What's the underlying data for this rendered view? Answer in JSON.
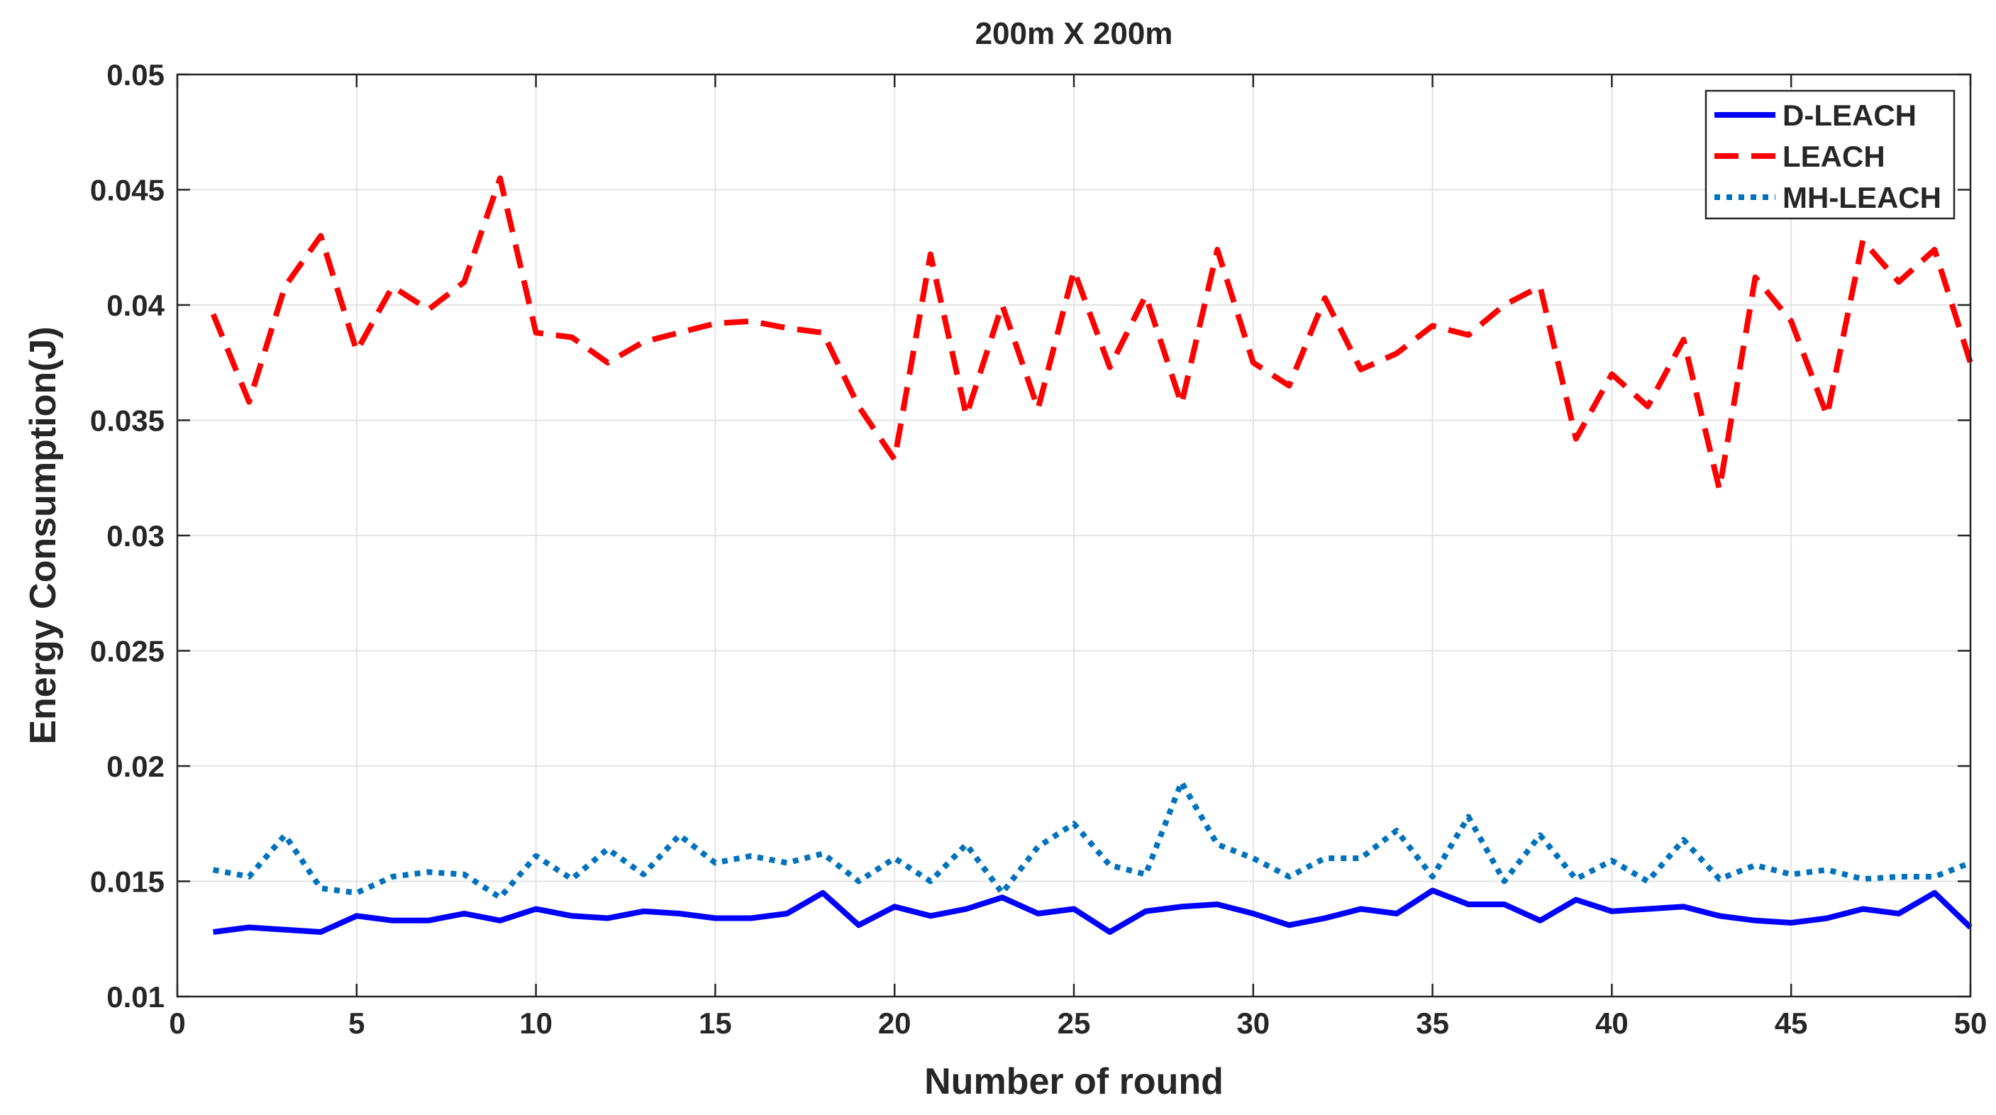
{
  "chart_data": {
    "type": "line",
    "title": "200m X 200m",
    "xlabel": "Number of round",
    "ylabel": "Energy Consumption(J)",
    "xlim": [
      0,
      50
    ],
    "ylim": [
      0.01,
      0.05
    ],
    "xticks": [
      0,
      5,
      10,
      15,
      20,
      25,
      30,
      35,
      40,
      45,
      50
    ],
    "xtick_labels": [
      "0",
      "5",
      "10",
      "15",
      "20",
      "25",
      "30",
      "35",
      "40",
      "45",
      "50"
    ],
    "yticks": [
      0.01,
      0.015,
      0.02,
      0.025,
      0.03,
      0.035,
      0.04,
      0.045,
      0.05
    ],
    "ytick_labels": [
      "0.01",
      "0.015",
      "0.02",
      "0.025",
      "0.03",
      "0.035",
      "0.04",
      "0.045",
      "0.05"
    ],
    "grid": true,
    "legend_position": "top-right",
    "x": [
      1,
      2,
      3,
      4,
      5,
      6,
      7,
      8,
      9,
      10,
      11,
      12,
      13,
      14,
      15,
      16,
      17,
      18,
      19,
      20,
      21,
      22,
      23,
      24,
      25,
      26,
      27,
      28,
      29,
      30,
      31,
      32,
      33,
      34,
      35,
      36,
      37,
      38,
      39,
      40,
      41,
      42,
      43,
      44,
      45,
      46,
      47,
      48,
      49,
      50
    ],
    "series": [
      {
        "name": "D-LEACH",
        "color": "#0000ff",
        "style": "solid",
        "values": [
          0.0128,
          0.013,
          0.0129,
          0.0128,
          0.0135,
          0.0133,
          0.0133,
          0.0136,
          0.0133,
          0.0138,
          0.0135,
          0.0134,
          0.0137,
          0.0136,
          0.0134,
          0.0134,
          0.0136,
          0.0145,
          0.0131,
          0.0139,
          0.0135,
          0.0138,
          0.0143,
          0.0136,
          0.0138,
          0.0128,
          0.0137,
          0.0139,
          0.014,
          0.0136,
          0.0131,
          0.0134,
          0.0138,
          0.0136,
          0.0146,
          0.014,
          0.014,
          0.0133,
          0.0142,
          0.0137,
          0.0138,
          0.0139,
          0.0135,
          0.0133,
          0.0132,
          0.0134,
          0.0138,
          0.0136,
          0.0145,
          0.013
        ]
      },
      {
        "name": "LEACH",
        "color": "#ff0000",
        "style": "dashed",
        "values": [
          0.0396,
          0.0358,
          0.0408,
          0.043,
          0.038,
          0.0408,
          0.0398,
          0.041,
          0.0455,
          0.0388,
          0.0386,
          0.0375,
          0.0384,
          0.0388,
          0.0392,
          0.0393,
          0.039,
          0.0388,
          0.0356,
          0.0333,
          0.0422,
          0.0352,
          0.04,
          0.0355,
          0.0415,
          0.0373,
          0.0404,
          0.0357,
          0.0424,
          0.0375,
          0.0365,
          0.0403,
          0.0372,
          0.0379,
          0.0391,
          0.0387,
          0.04,
          0.0408,
          0.0342,
          0.037,
          0.0356,
          0.0385,
          0.032,
          0.0412,
          0.0393,
          0.0352,
          0.0428,
          0.041,
          0.0424,
          0.0375
        ]
      },
      {
        "name": "MH-LEACH",
        "color": "#0072bd",
        "style": "dotted",
        "values": [
          0.0155,
          0.0152,
          0.017,
          0.0147,
          0.0145,
          0.0152,
          0.0154,
          0.0153,
          0.0143,
          0.0161,
          0.0151,
          0.0164,
          0.0153,
          0.017,
          0.0158,
          0.0161,
          0.0158,
          0.0162,
          0.015,
          0.016,
          0.015,
          0.0166,
          0.0145,
          0.0165,
          0.0175,
          0.0157,
          0.0153,
          0.0193,
          0.0166,
          0.016,
          0.0152,
          0.016,
          0.016,
          0.0172,
          0.0152,
          0.0178,
          0.015,
          0.017,
          0.0151,
          0.0159,
          0.015,
          0.0168,
          0.0151,
          0.0157,
          0.0153,
          0.0155,
          0.0151,
          0.0152,
          0.0152,
          0.0158
        ]
      }
    ]
  }
}
